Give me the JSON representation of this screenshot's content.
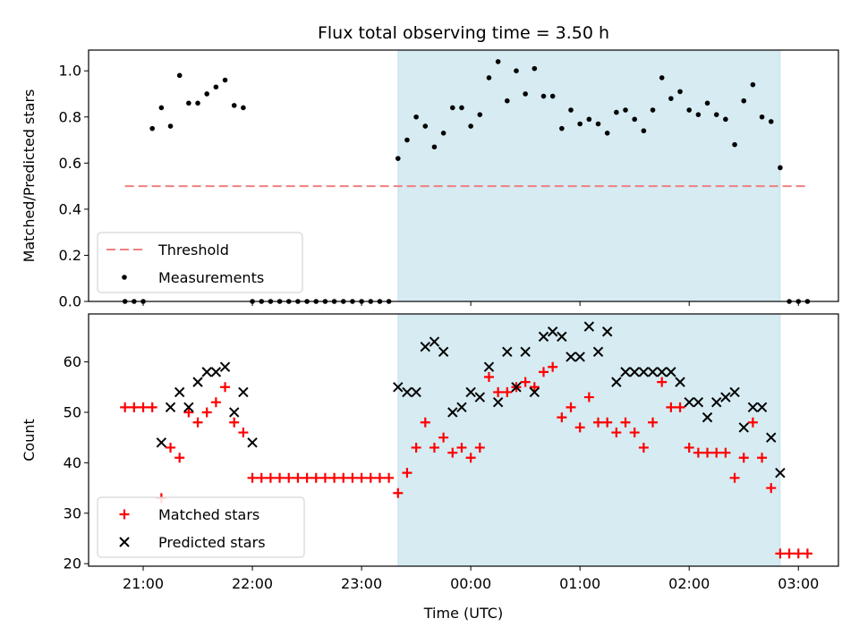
{
  "chart_data": [
    {
      "type": "scatter",
      "panel": "top",
      "title": "Flux total observing time = 3.50 h",
      "xlabel": "",
      "ylabel": "Matched/Predicted stars",
      "xlim": [
        "2024-01-01T20:30",
        "2024-01-02T03:22"
      ],
      "ylim": [
        0,
        1.09
      ],
      "yticks": [
        0.0,
        0.2,
        0.4,
        0.6,
        0.8,
        1.0
      ],
      "ytick_labels": [
        "0.0",
        "0.2",
        "0.4",
        "0.6",
        "0.8",
        "1.0"
      ],
      "shaded_region": {
        "x0": "2024-01-01T23:20",
        "x1": "2024-01-02T02:50",
        "color": "#add8e6"
      },
      "legend": {
        "position": "lower-left",
        "entries": [
          {
            "label": "Threshold",
            "style": "dashed-line",
            "color": "#f08080"
          },
          {
            "label": "Measurements",
            "style": "dot",
            "color": "#000000"
          }
        ]
      },
      "series": [
        {
          "name": "Threshold",
          "kind": "line",
          "color": "#f08080",
          "x": [
            "2024-01-01T20:50",
            "2024-01-02T03:05"
          ],
          "y": [
            0.5,
            0.5
          ]
        },
        {
          "name": "Measurements",
          "kind": "points",
          "color": "#000000",
          "x": [
            "2024-01-01T20:50",
            "2024-01-01T20:55",
            "2024-01-01T21:00",
            "2024-01-01T21:05",
            "2024-01-01T21:10",
            "2024-01-01T21:15",
            "2024-01-01T21:20",
            "2024-01-01T21:25",
            "2024-01-01T21:30",
            "2024-01-01T21:35",
            "2024-01-01T21:40",
            "2024-01-01T21:45",
            "2024-01-01T21:50",
            "2024-01-01T21:55",
            "2024-01-01T22:00",
            "2024-01-01T22:05",
            "2024-01-01T22:10",
            "2024-01-01T22:15",
            "2024-01-01T22:20",
            "2024-01-01T22:25",
            "2024-01-01T22:30",
            "2024-01-01T22:35",
            "2024-01-01T22:40",
            "2024-01-01T22:45",
            "2024-01-01T22:50",
            "2024-01-01T22:55",
            "2024-01-01T23:00",
            "2024-01-01T23:05",
            "2024-01-01T23:10",
            "2024-01-01T23:15",
            "2024-01-01T23:20",
            "2024-01-01T23:25",
            "2024-01-01T23:30",
            "2024-01-01T23:35",
            "2024-01-01T23:40",
            "2024-01-01T23:45",
            "2024-01-01T23:50",
            "2024-01-01T23:55",
            "2024-01-02T00:00",
            "2024-01-02T00:05",
            "2024-01-02T00:10",
            "2024-01-02T00:15",
            "2024-01-02T00:20",
            "2024-01-02T00:25",
            "2024-01-02T00:30",
            "2024-01-02T00:35",
            "2024-01-02T00:40",
            "2024-01-02T00:45",
            "2024-01-02T00:50",
            "2024-01-02T00:55",
            "2024-01-02T01:00",
            "2024-01-02T01:05",
            "2024-01-02T01:10",
            "2024-01-02T01:15",
            "2024-01-02T01:20",
            "2024-01-02T01:25",
            "2024-01-02T01:30",
            "2024-01-02T01:35",
            "2024-01-02T01:40",
            "2024-01-02T01:45",
            "2024-01-02T01:50",
            "2024-01-02T01:55",
            "2024-01-02T02:00",
            "2024-01-02T02:05",
            "2024-01-02T02:10",
            "2024-01-02T02:15",
            "2024-01-02T02:20",
            "2024-01-02T02:25",
            "2024-01-02T02:30",
            "2024-01-02T02:35",
            "2024-01-02T02:40",
            "2024-01-02T02:45",
            "2024-01-02T02:50",
            "2024-01-02T02:55",
            "2024-01-02T03:00",
            "2024-01-02T03:05"
          ],
          "y": [
            0,
            0,
            0,
            0.75,
            0.84,
            0.76,
            0.98,
            0.86,
            0.86,
            0.9,
            0.93,
            0.96,
            0.85,
            0.84,
            0,
            0,
            0,
            0,
            0,
            0,
            0,
            0,
            0,
            0,
            0,
            0,
            0,
            0,
            0,
            0,
            0.62,
            0.7,
            0.8,
            0.76,
            0.67,
            0.73,
            0.84,
            0.84,
            0.76,
            0.81,
            0.97,
            1.04,
            0.87,
            1.0,
            0.9,
            1.01,
            0.89,
            0.89,
            0.75,
            0.83,
            0.77,
            0.79,
            0.77,
            0.73,
            0.82,
            0.83,
            0.79,
            0.74,
            0.83,
            0.97,
            0.88,
            0.91,
            0.83,
            0.81,
            0.86,
            0.81,
            0.79,
            0.68,
            0.87,
            0.94,
            0.8,
            0.78,
            0.58,
            0,
            0,
            0
          ]
        }
      ]
    },
    {
      "type": "scatter",
      "panel": "bottom",
      "xlabel": "Time (UTC)",
      "ylabel": "Count",
      "xlim": [
        "2024-01-01T20:30",
        "2024-01-02T03:22"
      ],
      "ylim": [
        19.5,
        69.5
      ],
      "yticks": [
        20,
        30,
        40,
        50,
        60
      ],
      "ytick_labels": [
        "20",
        "30",
        "40",
        "50",
        "60"
      ],
      "xticks": [
        "2024-01-01T21:00",
        "2024-01-01T22:00",
        "2024-01-01T23:00",
        "2024-01-02T00:00",
        "2024-01-02T01:00",
        "2024-01-02T02:00",
        "2024-01-02T03:00"
      ],
      "xtick_labels": [
        "21:00",
        "22:00",
        "23:00",
        "00:00",
        "01:00",
        "02:00",
        "03:00"
      ],
      "shaded_region": {
        "x0": "2024-01-01T23:20",
        "x1": "2024-01-02T02:50",
        "color": "#add8e6"
      },
      "legend": {
        "position": "lower-left",
        "entries": [
          {
            "label": "Matched stars",
            "style": "plus",
            "color": "#ff0000"
          },
          {
            "label": "Predicted stars",
            "style": "cross",
            "color": "#000000"
          }
        ]
      },
      "series": [
        {
          "name": "Matched stars",
          "kind": "plus",
          "color": "#ff0000",
          "x": [
            "2024-01-01T20:50",
            "2024-01-01T20:55",
            "2024-01-01T21:00",
            "2024-01-01T21:05",
            "2024-01-01T21:10",
            "2024-01-01T21:15",
            "2024-01-01T21:20",
            "2024-01-01T21:25",
            "2024-01-01T21:30",
            "2024-01-01T21:35",
            "2024-01-01T21:40",
            "2024-01-01T21:45",
            "2024-01-01T21:50",
            "2024-01-01T21:55",
            "2024-01-01T22:00",
            "2024-01-01T22:05",
            "2024-01-01T22:10",
            "2024-01-01T22:15",
            "2024-01-01T22:20",
            "2024-01-01T22:25",
            "2024-01-01T22:30",
            "2024-01-01T22:35",
            "2024-01-01T22:40",
            "2024-01-01T22:45",
            "2024-01-01T22:50",
            "2024-01-01T22:55",
            "2024-01-01T23:00",
            "2024-01-01T23:05",
            "2024-01-01T23:10",
            "2024-01-01T23:15",
            "2024-01-01T23:20",
            "2024-01-01T23:25",
            "2024-01-01T23:30",
            "2024-01-01T23:35",
            "2024-01-01T23:40",
            "2024-01-01T23:45",
            "2024-01-01T23:50",
            "2024-01-01T23:55",
            "2024-01-02T00:00",
            "2024-01-02T00:05",
            "2024-01-02T00:10",
            "2024-01-02T00:15",
            "2024-01-02T00:20",
            "2024-01-02T00:25",
            "2024-01-02T00:30",
            "2024-01-02T00:35",
            "2024-01-02T00:40",
            "2024-01-02T00:45",
            "2024-01-02T00:50",
            "2024-01-02T00:55",
            "2024-01-02T01:00",
            "2024-01-02T01:05",
            "2024-01-02T01:10",
            "2024-01-02T01:15",
            "2024-01-02T01:20",
            "2024-01-02T01:25",
            "2024-01-02T01:30",
            "2024-01-02T01:35",
            "2024-01-02T01:40",
            "2024-01-02T01:45",
            "2024-01-02T01:50",
            "2024-01-02T01:55",
            "2024-01-02T02:00",
            "2024-01-02T02:05",
            "2024-01-02T02:10",
            "2024-01-02T02:15",
            "2024-01-02T02:20",
            "2024-01-02T02:25",
            "2024-01-02T02:30",
            "2024-01-02T02:35",
            "2024-01-02T02:40",
            "2024-01-02T02:45",
            "2024-01-02T02:50",
            "2024-01-02T02:55",
            "2024-01-02T03:00",
            "2024-01-02T03:05"
          ],
          "y": [
            51,
            51,
            51,
            51,
            33,
            43,
            41,
            50,
            48,
            50,
            52,
            55,
            48,
            46,
            37,
            37,
            37,
            37,
            37,
            37,
            37,
            37,
            37,
            37,
            37,
            37,
            37,
            37,
            37,
            37,
            34,
            38,
            43,
            48,
            43,
            45,
            42,
            43,
            41,
            43,
            57,
            54,
            54,
            55,
            56,
            55,
            58,
            59,
            49,
            51,
            47,
            53,
            48,
            48,
            46,
            48,
            46,
            43,
            48,
            56,
            51,
            51,
            43,
            42,
            42,
            42,
            42,
            37,
            41,
            48,
            41,
            35,
            22,
            22,
            22,
            22
          ]
        },
        {
          "name": "Predicted stars",
          "kind": "cross",
          "color": "#000000",
          "x": [
            "2024-01-01T21:10",
            "2024-01-01T21:15",
            "2024-01-01T21:20",
            "2024-01-01T21:25",
            "2024-01-01T21:30",
            "2024-01-01T21:35",
            "2024-01-01T21:40",
            "2024-01-01T21:45",
            "2024-01-01T21:50",
            "2024-01-01T21:55",
            "2024-01-01T22:00",
            "2024-01-01T23:20",
            "2024-01-01T23:25",
            "2024-01-01T23:30",
            "2024-01-01T23:35",
            "2024-01-01T23:40",
            "2024-01-01T23:45",
            "2024-01-01T23:50",
            "2024-01-01T23:55",
            "2024-01-02T00:00",
            "2024-01-02T00:05",
            "2024-01-02T00:10",
            "2024-01-02T00:15",
            "2024-01-02T00:20",
            "2024-01-02T00:25",
            "2024-01-02T00:30",
            "2024-01-02T00:35",
            "2024-01-02T00:40",
            "2024-01-02T00:45",
            "2024-01-02T00:50",
            "2024-01-02T00:55",
            "2024-01-02T01:00",
            "2024-01-02T01:05",
            "2024-01-02T01:10",
            "2024-01-02T01:15",
            "2024-01-02T01:20",
            "2024-01-02T01:25",
            "2024-01-02T01:30",
            "2024-01-02T01:35",
            "2024-01-02T01:40",
            "2024-01-02T01:45",
            "2024-01-02T01:50",
            "2024-01-02T01:55",
            "2024-01-02T02:00",
            "2024-01-02T02:05",
            "2024-01-02T02:10",
            "2024-01-02T02:15",
            "2024-01-02T02:20",
            "2024-01-02T02:25",
            "2024-01-02T02:30",
            "2024-01-02T02:35",
            "2024-01-02T02:40",
            "2024-01-02T02:45",
            "2024-01-02T02:50"
          ],
          "y": [
            44,
            51,
            54,
            51,
            56,
            58,
            58,
            59,
            50,
            54,
            44,
            55,
            54,
            54,
            63,
            64,
            62,
            50,
            51,
            54,
            53,
            59,
            52,
            62,
            55,
            62,
            54,
            65,
            66,
            65,
            61,
            61,
            67,
            62,
            66,
            56,
            58,
            58,
            58,
            58,
            58,
            58,
            56,
            52,
            52,
            49,
            52,
            53,
            54,
            47,
            51,
            51,
            45,
            38
          ]
        }
      ]
    }
  ]
}
